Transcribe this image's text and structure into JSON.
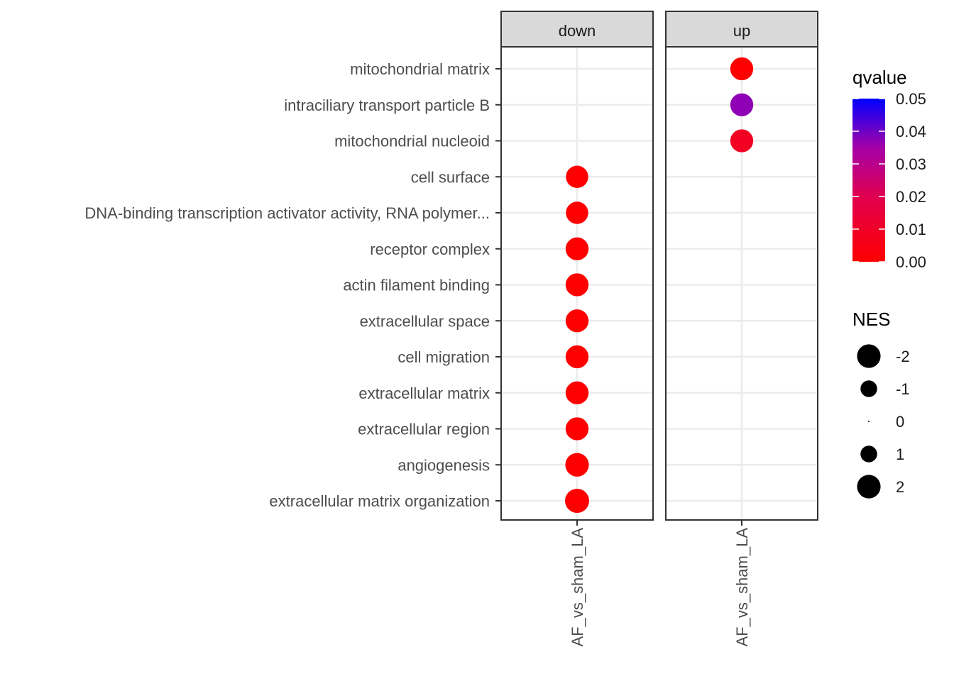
{
  "chart_data": {
    "type": "scatter",
    "categories": [
      "mitochondrial matrix",
      "intraciliary transport particle B",
      "mitochondrial nucleoid",
      "cell surface",
      "DNA-binding transcription activator activity, RNA polymer...",
      "receptor complex",
      "actin filament binding",
      "extracellular space",
      "cell migration",
      "extracellular matrix",
      "extracellular region",
      "angiogenesis",
      "extracellular matrix organization"
    ],
    "facets": [
      {
        "label": "down",
        "x_label": "AF_vs_sham_LA"
      },
      {
        "label": "up",
        "x_label": "AF_vs_sham_LA"
      }
    ],
    "points": [
      {
        "facet": "up",
        "term": "mitochondrial matrix",
        "qvalue": 0.0,
        "NES": 1.9
      },
      {
        "facet": "up",
        "term": "intraciliary transport particle B",
        "qvalue": 0.037,
        "NES": 1.9
      },
      {
        "facet": "up",
        "term": "mitochondrial nucleoid",
        "qvalue": 0.009,
        "NES": 1.9
      },
      {
        "facet": "down",
        "term": "cell surface",
        "qvalue": 0.0,
        "NES": -1.8
      },
      {
        "facet": "down",
        "term": "DNA-binding transcription activator activity, RNA polymer...",
        "qvalue": 0.0,
        "NES": -1.8
      },
      {
        "facet": "down",
        "term": "receptor complex",
        "qvalue": 0.0,
        "NES": -1.9
      },
      {
        "facet": "down",
        "term": "actin filament binding",
        "qvalue": 0.0,
        "NES": -1.9
      },
      {
        "facet": "down",
        "term": "extracellular space",
        "qvalue": 0.0,
        "NES": -1.9
      },
      {
        "facet": "down",
        "term": "cell migration",
        "qvalue": 0.0,
        "NES": -1.9
      },
      {
        "facet": "down",
        "term": "extracellular matrix",
        "qvalue": 0.0,
        "NES": -1.9
      },
      {
        "facet": "down",
        "term": "extracellular region",
        "qvalue": 0.0,
        "NES": -1.9
      },
      {
        "facet": "down",
        "term": "angiogenesis",
        "qvalue": 0.0,
        "NES": -2.0
      },
      {
        "facet": "down",
        "term": "extracellular matrix organization",
        "qvalue": 0.0,
        "NES": -2.1
      }
    ],
    "color_legend": {
      "title": "qvalue",
      "range": [
        0.0,
        0.05
      ],
      "ticks": [
        "0.05",
        "0.04",
        "0.03",
        "0.02",
        "0.01",
        "0.00"
      ],
      "low_color": "#ff0000",
      "high_color": "#0000ff"
    },
    "size_legend": {
      "title": "NES",
      "entries": [
        {
          "label": "-2",
          "value": -2
        },
        {
          "label": "-1",
          "value": -1
        },
        {
          "label": "0",
          "value": 0
        },
        {
          "label": "1",
          "value": 1
        },
        {
          "label": "2",
          "value": 2
        }
      ]
    },
    "grid": true,
    "legend_position": "right"
  }
}
